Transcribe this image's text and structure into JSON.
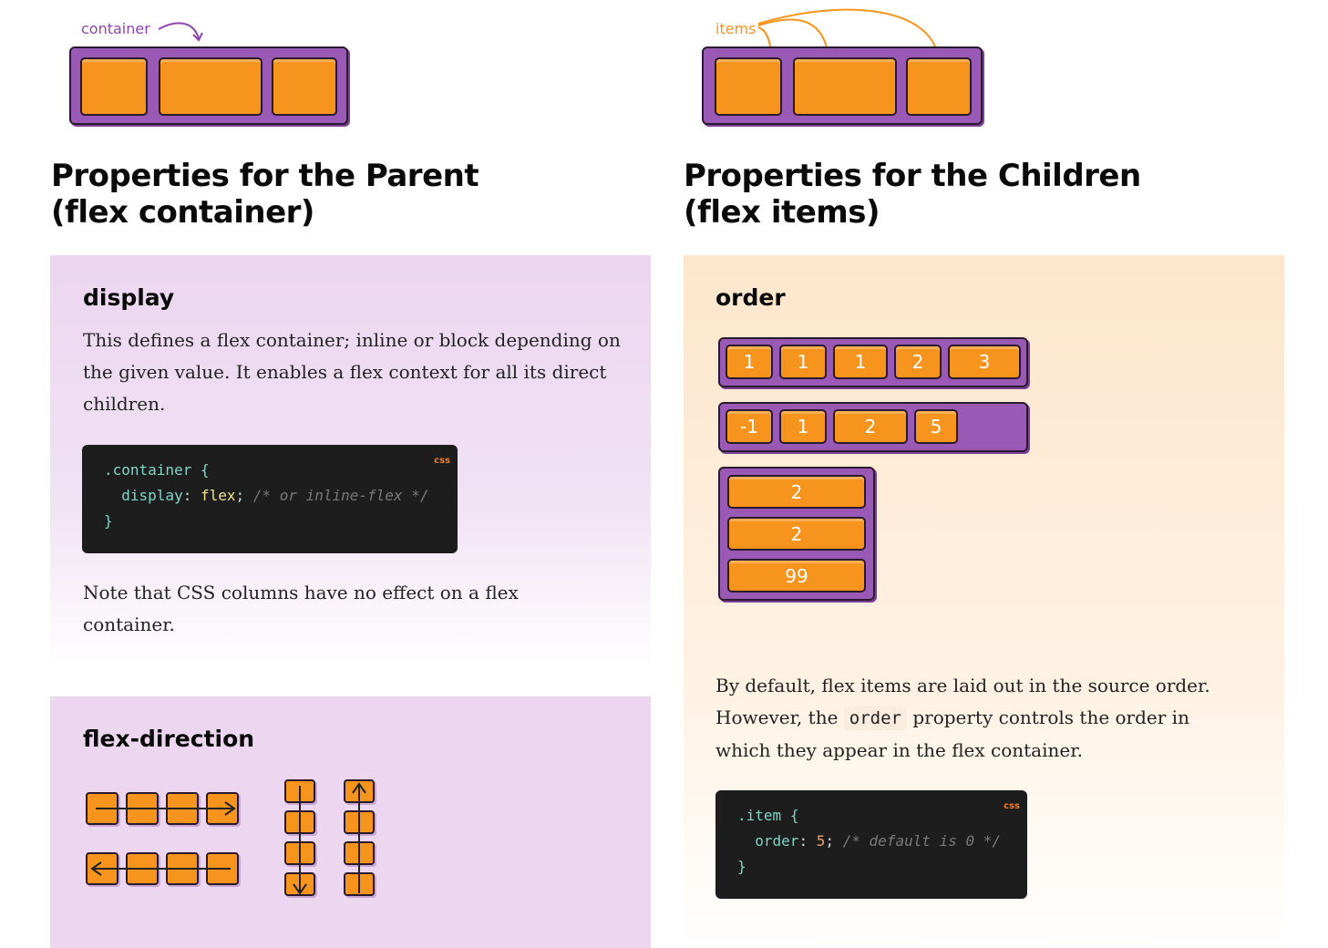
{
  "left": {
    "illus_label": "container",
    "heading_line1": "Properties for the Parent",
    "heading_line2": "(flex container)",
    "display": {
      "title": "display",
      "description": "This defines a flex container; inline or block depending on the given value. It enables a flex context for all its direct children.",
      "code_lang": "css",
      "code": {
        "selector": ".container",
        "open": "{",
        "prop": "display",
        "colon": ":",
        "value": "flex",
        "semi": ";",
        "comment": "/* or inline-flex */",
        "close": "}"
      },
      "note": "Note that CSS columns have no effect on a flex container."
    },
    "flex_direction": {
      "title": "flex-direction"
    }
  },
  "right": {
    "illus_label": "items",
    "heading_line1": "Properties for the Children",
    "heading_line2": "(flex items)",
    "order": {
      "title": "order",
      "row1": [
        "1",
        "1",
        "1",
        "2",
        "3"
      ],
      "row2": [
        "-1",
        "1",
        "2",
        "5"
      ],
      "column": [
        "2",
        "2",
        "99"
      ],
      "desc_part1": "By default, flex items are laid out in the source order. However, the ",
      "desc_code": "order",
      "desc_part2": " property controls the order in which they appear in the flex container.",
      "code_lang": "css",
      "code": {
        "selector": ".item",
        "open": "{",
        "prop": "order",
        "colon": ":",
        "value": "5",
        "semi": ";",
        "comment": "/* default is 0 */",
        "close": "}"
      }
    }
  },
  "colors": {
    "purple": "#9b59b6",
    "orange": "#f7941d",
    "code_bg": "#1d1d1d"
  }
}
